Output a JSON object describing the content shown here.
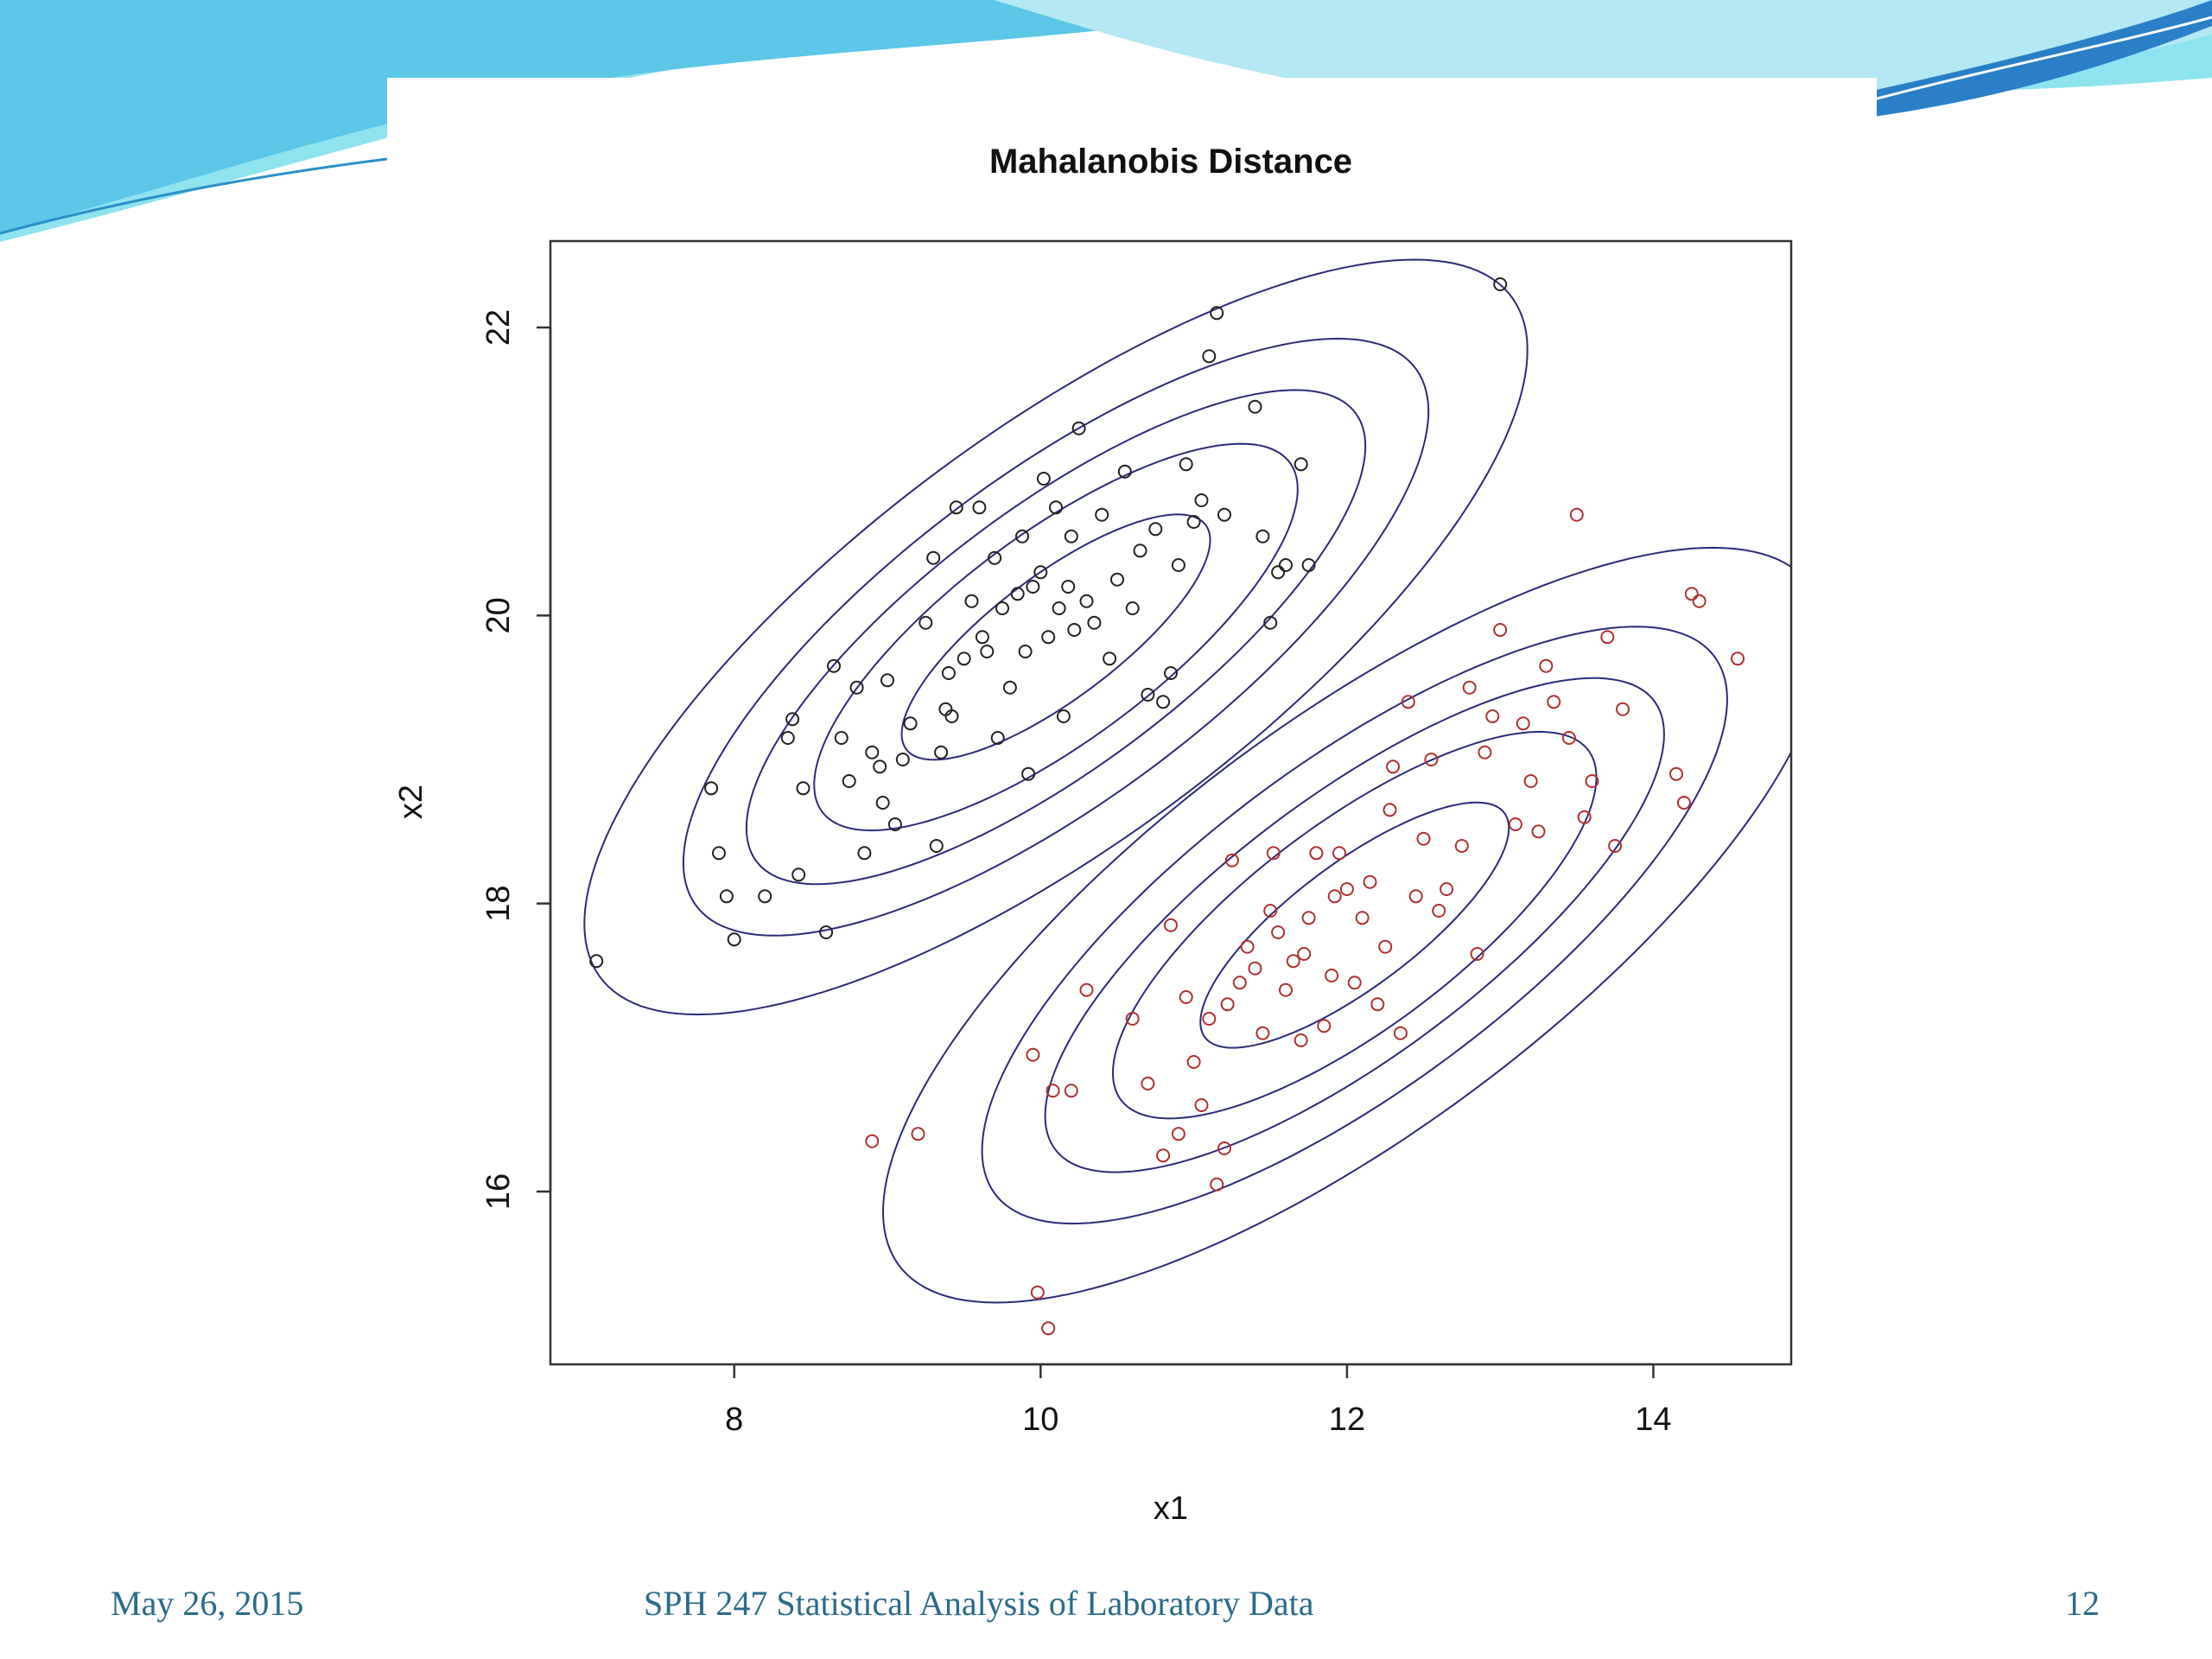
{
  "slide": {
    "footer": {
      "date": "May 26, 2015",
      "course": "SPH 247 Statistical Analysis of Laboratory Data",
      "page_number": "12"
    },
    "theme_colors": {
      "swoosh_light": "#8fe3ef",
      "swoosh_dark": "#2a7fc7",
      "footer_text": "#2a6b8a"
    }
  },
  "chart_data": {
    "type": "scatter",
    "title": "Mahalanobis Distance",
    "xlabel": "x1",
    "ylabel": "x2",
    "xlim": [
      6.8,
      14.9
    ],
    "ylim": [
      14.8,
      22.6
    ],
    "xticks": [
      8,
      10,
      12,
      14
    ],
    "yticks": [
      16,
      18,
      20,
      22
    ],
    "grid": false,
    "legend": "none",
    "contour_color": "#2b2b7a",
    "contours": [
      {
        "center": [
          10.1,
          19.85
        ],
        "axis_angle_deg": 39,
        "semi_axes": [
          [
            1.25,
            0.42
          ],
          [
            1.95,
            0.7
          ],
          [
            2.5,
            0.88
          ],
          [
            3.0,
            1.1
          ],
          [
            3.8,
            1.38
          ]
        ]
      },
      {
        "center": [
          12.05,
          17.85
        ],
        "axis_angle_deg": 39,
        "semi_axes": [
          [
            1.25,
            0.42
          ],
          [
            1.95,
            0.7
          ],
          [
            2.5,
            0.88
          ],
          [
            3.0,
            1.1
          ],
          [
            3.8,
            1.38
          ]
        ]
      }
    ],
    "series": [
      {
        "color": "#222222",
        "points": [
          [
            7.1,
            17.6
          ],
          [
            7.85,
            18.8
          ],
          [
            7.9,
            18.35
          ],
          [
            7.95,
            18.05
          ],
          [
            8.0,
            17.75
          ],
          [
            8.2,
            18.05
          ],
          [
            8.35,
            19.15
          ],
          [
            8.38,
            19.28
          ],
          [
            8.42,
            18.2
          ],
          [
            8.45,
            18.8
          ],
          [
            8.6,
            17.8
          ],
          [
            8.65,
            19.65
          ],
          [
            8.7,
            19.15
          ],
          [
            8.75,
            18.85
          ],
          [
            8.8,
            19.5
          ],
          [
            8.85,
            18.35
          ],
          [
            8.9,
            19.05
          ],
          [
            8.95,
            18.95
          ],
          [
            8.97,
            18.7
          ],
          [
            9.0,
            19.55
          ],
          [
            9.05,
            18.55
          ],
          [
            9.1,
            19.0
          ],
          [
            9.15,
            19.25
          ],
          [
            9.25,
            19.95
          ],
          [
            9.3,
            20.4
          ],
          [
            9.32,
            18.4
          ],
          [
            9.35,
            19.05
          ],
          [
            9.38,
            19.35
          ],
          [
            9.4,
            19.6
          ],
          [
            9.42,
            19.3
          ],
          [
            9.45,
            20.75
          ],
          [
            9.5,
            19.7
          ],
          [
            9.55,
            20.1
          ],
          [
            9.6,
            20.75
          ],
          [
            9.62,
            19.85
          ],
          [
            9.65,
            19.75
          ],
          [
            9.7,
            20.4
          ],
          [
            9.72,
            19.15
          ],
          [
            9.75,
            20.05
          ],
          [
            9.8,
            19.5
          ],
          [
            9.85,
            20.15
          ],
          [
            9.88,
            20.55
          ],
          [
            9.9,
            19.75
          ],
          [
            9.92,
            18.9
          ],
          [
            9.95,
            20.2
          ],
          [
            10.0,
            20.3
          ],
          [
            10.02,
            20.95
          ],
          [
            10.05,
            19.85
          ],
          [
            10.1,
            20.75
          ],
          [
            10.12,
            20.05
          ],
          [
            10.15,
            19.3
          ],
          [
            10.18,
            20.2
          ],
          [
            10.2,
            20.55
          ],
          [
            10.22,
            19.9
          ],
          [
            10.25,
            21.3
          ],
          [
            10.3,
            20.1
          ],
          [
            10.35,
            19.95
          ],
          [
            10.4,
            20.7
          ],
          [
            10.45,
            19.7
          ],
          [
            10.5,
            20.25
          ],
          [
            10.55,
            21.0
          ],
          [
            10.6,
            20.05
          ],
          [
            10.65,
            20.45
          ],
          [
            10.7,
            19.45
          ],
          [
            10.75,
            20.6
          ],
          [
            10.8,
            19.4
          ],
          [
            10.85,
            19.6
          ],
          [
            10.9,
            20.35
          ],
          [
            10.95,
            21.05
          ],
          [
            11.0,
            20.65
          ],
          [
            11.05,
            20.8
          ],
          [
            11.1,
            21.8
          ],
          [
            11.15,
            22.1
          ],
          [
            11.2,
            20.7
          ],
          [
            11.4,
            21.45
          ],
          [
            11.45,
            20.55
          ],
          [
            11.5,
            19.95
          ],
          [
            11.55,
            20.3
          ],
          [
            11.6,
            20.35
          ],
          [
            11.7,
            21.05
          ],
          [
            11.75,
            20.35
          ],
          [
            13.0,
            22.3
          ]
        ]
      },
      {
        "color": "#b03030",
        "points": [
          [
            8.9,
            16.35
          ],
          [
            9.95,
            16.95
          ],
          [
            9.98,
            15.3
          ],
          [
            10.05,
            15.05
          ],
          [
            10.08,
            16.7
          ],
          [
            10.2,
            16.7
          ],
          [
            10.3,
            17.4
          ],
          [
            10.6,
            17.2
          ],
          [
            10.7,
            16.75
          ],
          [
            10.8,
            16.25
          ],
          [
            10.85,
            17.85
          ],
          [
            10.9,
            16.4
          ],
          [
            10.95,
            17.35
          ],
          [
            11.0,
            16.9
          ],
          [
            11.05,
            16.6
          ],
          [
            11.1,
            17.2
          ],
          [
            11.15,
            16.05
          ],
          [
            11.2,
            16.3
          ],
          [
            11.22,
            17.3
          ],
          [
            11.25,
            18.3
          ],
          [
            11.3,
            17.45
          ],
          [
            11.35,
            17.7
          ],
          [
            11.4,
            17.55
          ],
          [
            11.45,
            17.1
          ],
          [
            11.5,
            17.95
          ],
          [
            11.52,
            18.35
          ],
          [
            11.55,
            17.8
          ],
          [
            11.6,
            17.4
          ],
          [
            11.65,
            17.6
          ],
          [
            11.7,
            17.05
          ],
          [
            11.72,
            17.65
          ],
          [
            11.75,
            17.9
          ],
          [
            11.8,
            18.35
          ],
          [
            11.85,
            17.15
          ],
          [
            11.9,
            17.5
          ],
          [
            11.92,
            18.05
          ],
          [
            11.95,
            18.35
          ],
          [
            12.0,
            18.1
          ],
          [
            12.05,
            17.45
          ],
          [
            12.1,
            17.9
          ],
          [
            12.15,
            18.15
          ],
          [
            12.2,
            17.3
          ],
          [
            12.25,
            17.7
          ],
          [
            12.28,
            18.65
          ],
          [
            12.3,
            18.95
          ],
          [
            12.35,
            17.1
          ],
          [
            12.4,
            19.4
          ],
          [
            12.45,
            18.05
          ],
          [
            12.5,
            18.45
          ],
          [
            12.55,
            19.0
          ],
          [
            12.6,
            17.95
          ],
          [
            12.65,
            18.1
          ],
          [
            12.75,
            18.4
          ],
          [
            12.8,
            19.5
          ],
          [
            12.85,
            17.65
          ],
          [
            12.9,
            19.05
          ],
          [
            12.95,
            19.3
          ],
          [
            13.0,
            19.9
          ],
          [
            13.1,
            18.55
          ],
          [
            13.15,
            19.25
          ],
          [
            13.2,
            18.85
          ],
          [
            13.25,
            18.5
          ],
          [
            13.3,
            19.65
          ],
          [
            13.35,
            19.4
          ],
          [
            13.45,
            19.15
          ],
          [
            13.5,
            20.7
          ],
          [
            13.55,
            18.6
          ],
          [
            13.6,
            18.85
          ],
          [
            13.7,
            19.85
          ],
          [
            13.75,
            18.4
          ],
          [
            13.8,
            19.35
          ],
          [
            14.15,
            18.9
          ],
          [
            14.2,
            18.7
          ],
          [
            14.25,
            20.15
          ],
          [
            14.3,
            20.1
          ],
          [
            14.55,
            19.7
          ],
          [
            9.2,
            16.4
          ]
        ]
      }
    ]
  }
}
